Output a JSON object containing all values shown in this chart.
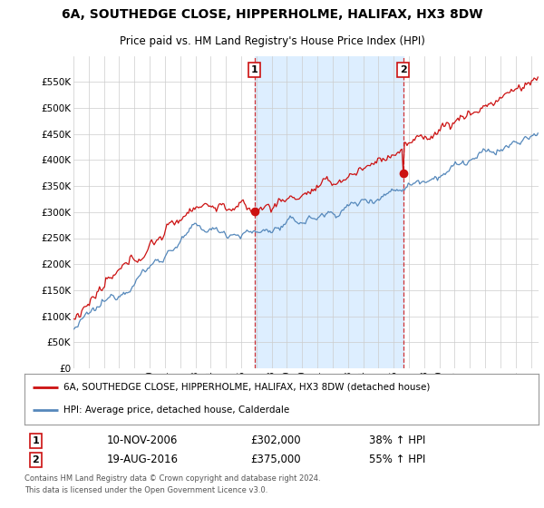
{
  "title": "6A, SOUTHEDGE CLOSE, HIPPERHOLME, HALIFAX, HX3 8DW",
  "subtitle": "Price paid vs. HM Land Registry's House Price Index (HPI)",
  "legend_line1": "6A, SOUTHEDGE CLOSE, HIPPERHOLME, HALIFAX, HX3 8DW (detached house)",
  "legend_line2": "HPI: Average price, detached house, Calderdale",
  "sale1_date": "10-NOV-2006",
  "sale1_price": 302000,
  "sale1_label": "38% ↑ HPI",
  "sale2_date": "19-AUG-2016",
  "sale2_price": 375000,
  "sale2_label": "55% ↑ HPI",
  "footnote1": "Contains HM Land Registry data © Crown copyright and database right 2024.",
  "footnote2": "This data is licensed under the Open Government Licence v3.0.",
  "hpi_color": "#5588bb",
  "price_color": "#cc1111",
  "shade_color": "#ddeeff",
  "plot_bg": "#ffffff",
  "grid_color": "#cccccc",
  "ylim": [
    0,
    600000
  ],
  "yticks": [
    0,
    50000,
    100000,
    150000,
    200000,
    250000,
    300000,
    350000,
    400000,
    450000,
    500000,
    550000
  ],
  "ytick_labels": [
    "£0",
    "£50K",
    "£100K",
    "£150K",
    "£200K",
    "£250K",
    "£300K",
    "£350K",
    "£400K",
    "£450K",
    "£500K",
    "£550K"
  ]
}
